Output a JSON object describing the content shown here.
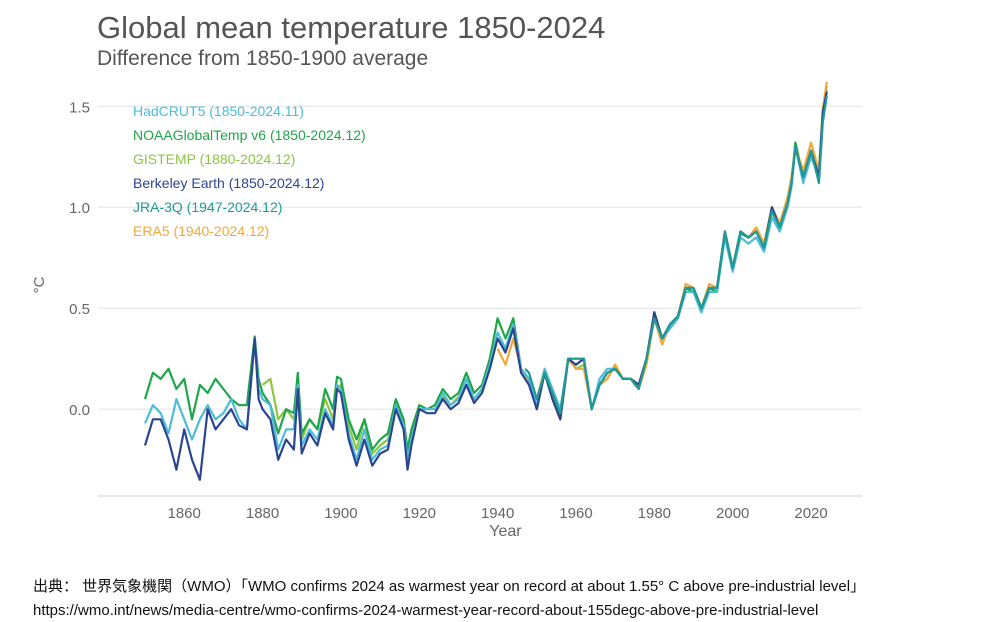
{
  "chart_data": {
    "type": "line",
    "title": "Global mean temperature 1850-2024",
    "subtitle": "Difference from 1850-1900 average",
    "xlabel": "Year",
    "ylabel": "°C",
    "xlim": [
      1838,
      2033
    ],
    "ylim": [
      -0.43,
      1.63
    ],
    "x_ticks": [
      1860,
      1880,
      1900,
      1920,
      1940,
      1960,
      1980,
      2000,
      2020
    ],
    "y_ticks": [
      0.0,
      0.5,
      1.0,
      1.5
    ],
    "y_tick_labels": [
      "0.0",
      "0.5",
      "1.0",
      "1.5"
    ],
    "grid": "horizontal",
    "legend_position": "top-left",
    "series": [
      {
        "name": "HadCRUT5 (1850-2024.11)",
        "color": "#4dbcd9",
        "x": [
          1850,
          1852,
          1854,
          1856,
          1858,
          1860,
          1862,
          1864,
          1866,
          1868,
          1870,
          1872,
          1874,
          1876,
          1878,
          1879,
          1880,
          1882,
          1884,
          1886,
          1888,
          1889,
          1890,
          1892,
          1894,
          1896,
          1898,
          1899,
          1900,
          1902,
          1904,
          1906,
          1908,
          1910,
          1912,
          1914,
          1916,
          1917,
          1918,
          1920,
          1922,
          1924,
          1926,
          1928,
          1930,
          1932,
          1934,
          1936,
          1938,
          1940,
          1942,
          1944,
          1946,
          1948,
          1950,
          1952,
          1954,
          1956,
          1958,
          1960,
          1962,
          1964,
          1966,
          1968,
          1970,
          1972,
          1974,
          1976,
          1978,
          1980,
          1982,
          1984,
          1986,
          1988,
          1990,
          1992,
          1994,
          1996,
          1998,
          2000,
          2002,
          2004,
          2006,
          2008,
          2010,
          2012,
          2014,
          2015,
          2016,
          2018,
          2020,
          2022,
          2023,
          2024
        ],
        "y": [
          -0.07,
          0.02,
          -0.02,
          -0.12,
          0.05,
          -0.05,
          -0.15,
          -0.05,
          0.02,
          -0.05,
          -0.02,
          0.05,
          -0.05,
          -0.1,
          0.34,
          0.1,
          0.05,
          0.02,
          -0.2,
          -0.1,
          -0.1,
          0.12,
          -0.18,
          -0.1,
          -0.15,
          0.0,
          -0.08,
          0.12,
          0.1,
          -0.12,
          -0.25,
          -0.1,
          -0.25,
          -0.2,
          -0.18,
          0.02,
          -0.08,
          -0.25,
          -0.15,
          0.0,
          0.0,
          0.0,
          0.08,
          0.02,
          0.05,
          0.15,
          0.05,
          0.1,
          0.22,
          0.38,
          0.3,
          0.42,
          0.2,
          0.15,
          0.02,
          0.2,
          0.1,
          0.0,
          0.25,
          0.25,
          0.25,
          0.0,
          0.15,
          0.2,
          0.2,
          0.15,
          0.15,
          0.12,
          0.25,
          0.45,
          0.35,
          0.4,
          0.45,
          0.58,
          0.58,
          0.48,
          0.58,
          0.58,
          0.85,
          0.68,
          0.85,
          0.82,
          0.85,
          0.78,
          0.95,
          0.88,
          1.0,
          1.1,
          1.3,
          1.12,
          1.25,
          1.15,
          1.45,
          1.55
        ]
      },
      {
        "name": "NOAAGlobalTemp v6 (1850-2024.12)",
        "color": "#1fa54a",
        "x": [
          1850,
          1852,
          1854,
          1856,
          1858,
          1860,
          1862,
          1864,
          1866,
          1868,
          1870,
          1872,
          1874,
          1876,
          1878,
          1879,
          1880,
          1882,
          1884,
          1886,
          1888,
          1889,
          1890,
          1892,
          1894,
          1896,
          1898,
          1899,
          1900,
          1902,
          1904,
          1906,
          1908,
          1910,
          1912,
          1914,
          1916,
          1917,
          1918,
          1920,
          1922,
          1924,
          1926,
          1928,
          1930,
          1932,
          1934,
          1936,
          1938,
          1940,
          1942,
          1944,
          1946,
          1948,
          1950,
          1952,
          1954,
          1956,
          1958,
          1960,
          1962,
          1964,
          1966,
          1968,
          1970,
          1972,
          1974,
          1976,
          1978,
          1980,
          1982,
          1984,
          1986,
          1988,
          1990,
          1992,
          1994,
          1996,
          1998,
          2000,
          2002,
          2004,
          2006,
          2008,
          2010,
          2012,
          2014,
          2015,
          2016,
          2018,
          2020,
          2022,
          2023,
          2024
        ],
        "y": [
          0.05,
          0.18,
          0.15,
          0.2,
          0.1,
          0.15,
          -0.05,
          0.12,
          0.08,
          0.15,
          0.1,
          0.05,
          0.02,
          0.02,
          0.36,
          0.15,
          0.08,
          0.02,
          -0.12,
          0.0,
          -0.02,
          0.18,
          -0.12,
          -0.05,
          -0.1,
          0.1,
          0.0,
          0.16,
          0.15,
          -0.05,
          -0.15,
          -0.05,
          -0.2,
          -0.15,
          -0.12,
          0.05,
          -0.05,
          -0.2,
          -0.1,
          0.02,
          0.0,
          0.02,
          0.1,
          0.05,
          0.08,
          0.18,
          0.08,
          0.12,
          0.25,
          0.45,
          0.35,
          0.45,
          0.2,
          0.15,
          0.0,
          0.18,
          0.05,
          -0.05,
          0.25,
          0.22,
          0.25,
          0.0,
          0.12,
          0.18,
          0.2,
          0.15,
          0.15,
          0.12,
          0.25,
          0.45,
          0.35,
          0.4,
          0.45,
          0.6,
          0.58,
          0.48,
          0.6,
          0.58,
          0.87,
          0.7,
          0.87,
          0.85,
          0.88,
          0.8,
          0.98,
          0.9,
          1.02,
          1.12,
          1.32,
          1.15,
          1.28,
          1.15,
          1.48,
          1.58
        ]
      },
      {
        "name": "GISTEMP (1880-2024.12)",
        "color": "#8cc63f",
        "x": [
          1880,
          1882,
          1884,
          1886,
          1888,
          1889,
          1890,
          1892,
          1894,
          1896,
          1898,
          1899,
          1900,
          1902,
          1904,
          1906,
          1908,
          1910,
          1912,
          1914,
          1916,
          1917,
          1918,
          1920,
          1922,
          1924,
          1926,
          1928,
          1930,
          1932,
          1934,
          1936,
          1938,
          1940,
          1942,
          1944,
          1946,
          1948,
          1950,
          1952,
          1954,
          1956,
          1958,
          1960,
          1962,
          1964,
          1966,
          1968,
          1970,
          1972,
          1974,
          1976,
          1978,
          1980,
          1982,
          1984,
          1986,
          1988,
          1990,
          1992,
          1994,
          1996,
          1998,
          2000,
          2002,
          2004,
          2006,
          2008,
          2010,
          2012,
          2014,
          2015,
          2016,
          2018,
          2020,
          2022,
          2023,
          2024
        ],
        "y": [
          0.12,
          0.15,
          -0.05,
          0.0,
          -0.05,
          0.12,
          -0.15,
          -0.05,
          -0.1,
          0.05,
          -0.05,
          0.1,
          0.12,
          -0.08,
          -0.2,
          -0.05,
          -0.22,
          -0.18,
          -0.15,
          0.03,
          -0.06,
          -0.22,
          -0.12,
          0.0,
          0.0,
          0.0,
          0.06,
          0.02,
          0.06,
          0.12,
          0.05,
          0.1,
          0.22,
          0.35,
          0.3,
          0.42,
          0.18,
          0.15,
          0.0,
          0.18,
          0.05,
          -0.05,
          0.25,
          0.2,
          0.22,
          0.0,
          0.12,
          0.15,
          0.22,
          0.15,
          0.15,
          0.1,
          0.25,
          0.48,
          0.35,
          0.42,
          0.46,
          0.6,
          0.6,
          0.5,
          0.6,
          0.6,
          0.88,
          0.7,
          0.88,
          0.85,
          0.88,
          0.82,
          1.0,
          0.9,
          1.02,
          1.12,
          1.32,
          1.15,
          1.28,
          1.18,
          1.48,
          1.6
        ]
      },
      {
        "name": "Berkeley Earth (1850-2024.12)",
        "color": "#2c4591",
        "x": [
          1850,
          1852,
          1854,
          1856,
          1858,
          1860,
          1862,
          1864,
          1866,
          1868,
          1870,
          1872,
          1874,
          1876,
          1878,
          1879,
          1880,
          1882,
          1884,
          1886,
          1888,
          1889,
          1890,
          1892,
          1894,
          1896,
          1898,
          1899,
          1900,
          1902,
          1904,
          1906,
          1908,
          1910,
          1912,
          1914,
          1916,
          1917,
          1918,
          1920,
          1922,
          1924,
          1926,
          1928,
          1930,
          1932,
          1934,
          1936,
          1938,
          1940,
          1942,
          1944,
          1946,
          1948,
          1950,
          1952,
          1954,
          1956,
          1958,
          1960,
          1962,
          1964,
          1966,
          1968,
          1970,
          1972,
          1974,
          1976,
          1978,
          1980,
          1982,
          1984,
          1986,
          1988,
          1990,
          1992,
          1994,
          1996,
          1998,
          2000,
          2002,
          2004,
          2006,
          2008,
          2010,
          2012,
          2014,
          2015,
          2016,
          2018,
          2020,
          2022,
          2023,
          2024
        ],
        "y": [
          -0.18,
          -0.05,
          -0.05,
          -0.15,
          -0.3,
          -0.1,
          -0.25,
          -0.35,
          0.0,
          -0.1,
          -0.05,
          0.0,
          -0.08,
          -0.1,
          0.35,
          0.05,
          0.0,
          -0.05,
          -0.25,
          -0.15,
          -0.2,
          0.1,
          -0.22,
          -0.12,
          -0.18,
          -0.02,
          -0.1,
          0.1,
          0.08,
          -0.15,
          -0.28,
          -0.15,
          -0.28,
          -0.22,
          -0.2,
          0.0,
          -0.1,
          -0.3,
          -0.18,
          0.0,
          -0.02,
          -0.02,
          0.05,
          0.0,
          0.03,
          0.12,
          0.03,
          0.08,
          0.2,
          0.35,
          0.28,
          0.4,
          0.18,
          0.12,
          0.0,
          0.18,
          0.05,
          -0.05,
          0.25,
          0.22,
          0.25,
          0.0,
          0.12,
          0.18,
          0.2,
          0.15,
          0.15,
          0.12,
          0.25,
          0.48,
          0.35,
          0.42,
          0.46,
          0.6,
          0.6,
          0.5,
          0.6,
          0.6,
          0.88,
          0.7,
          0.88,
          0.85,
          0.88,
          0.8,
          1.0,
          0.9,
          1.02,
          1.12,
          1.3,
          1.15,
          1.28,
          1.15,
          1.47,
          1.57
        ]
      },
      {
        "name": "JRA-3Q (1947-2024.12)",
        "color": "#1f9a95",
        "x": [
          1947,
          1948,
          1950,
          1952,
          1954,
          1956,
          1958,
          1960,
          1962,
          1964,
          1966,
          1968,
          1970,
          1972,
          1974,
          1976,
          1978,
          1980,
          1982,
          1984,
          1986,
          1988,
          1990,
          1992,
          1994,
          1996,
          1998,
          2000,
          2002,
          2004,
          2006,
          2008,
          2010,
          2012,
          2014,
          2015,
          2016,
          2018,
          2020,
          2022,
          2023,
          2024
        ],
        "y": [
          0.2,
          0.18,
          0.05,
          0.18,
          0.08,
          -0.02,
          0.25,
          0.25,
          0.25,
          0.0,
          0.12,
          0.18,
          0.2,
          0.15,
          0.15,
          0.1,
          0.25,
          0.45,
          0.35,
          0.42,
          0.46,
          0.6,
          0.6,
          0.5,
          0.6,
          0.6,
          0.88,
          0.7,
          0.88,
          0.85,
          0.88,
          0.8,
          0.98,
          0.9,
          1.02,
          1.12,
          1.3,
          1.15,
          1.28,
          1.12,
          1.42,
          1.55
        ]
      },
      {
        "name": "ERA5 (1940-2024.12)",
        "color": "#f0a83a",
        "x": [
          1940,
          1942,
          1944,
          1946,
          1948,
          1950,
          1952,
          1954,
          1956,
          1958,
          1960,
          1962,
          1964,
          1966,
          1968,
          1970,
          1972,
          1974,
          1975,
          1976,
          1978,
          1980,
          1982,
          1984,
          1986,
          1988,
          1990,
          1992,
          1994,
          1996,
          1998,
          2000,
          2002,
          2004,
          2006,
          2008,
          2010,
          2012,
          2014,
          2015,
          2016,
          2018,
          2020,
          2022,
          2023,
          2024
        ],
        "y": [
          0.3,
          0.22,
          0.35,
          0.2,
          0.12,
          0.05,
          0.2,
          0.05,
          -0.05,
          0.25,
          0.2,
          0.2,
          0.0,
          0.12,
          0.15,
          0.22,
          0.15,
          0.15,
          0.12,
          0.1,
          0.22,
          0.45,
          0.32,
          0.42,
          0.46,
          0.62,
          0.6,
          0.5,
          0.62,
          0.6,
          0.88,
          0.7,
          0.88,
          0.85,
          0.9,
          0.82,
          1.0,
          0.92,
          1.05,
          1.15,
          1.3,
          1.18,
          1.32,
          1.18,
          1.48,
          1.62
        ]
      }
    ]
  },
  "caption": {
    "line1": "出典： 世界気象機関（WMO）「WMO confirms 2024 as warmest year on record at about 1.55° C above pre-industrial level」",
    "line2": "https://wmo.int/news/media-centre/wmo-confirms-2024-warmest-year-record-about-155degc-above-pre-industrial-level"
  }
}
